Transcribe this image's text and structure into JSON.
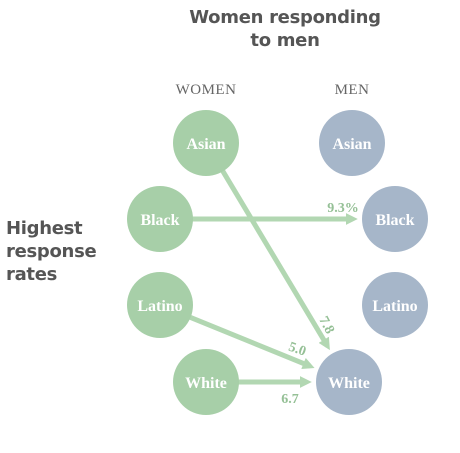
{
  "title_lines": [
    "Women responding",
    "to men"
  ],
  "side_label_lines": [
    "Highest",
    "response",
    "rates"
  ],
  "columns": {
    "women": "WOMEN",
    "men": "MEN"
  },
  "groups": [
    "Asian",
    "Black",
    "Latino",
    "White"
  ],
  "colors": {
    "women_node": "#a7cfa8",
    "men_node": "#a6b6c9",
    "arrow": "#b2d7b2",
    "rate_text": "#95c096",
    "title_text": "#555555"
  },
  "flows": [
    {
      "from": "Black",
      "to": "Black",
      "rate": "9.3%"
    },
    {
      "from": "Asian",
      "to": "White",
      "rate": "7.8"
    },
    {
      "from": "Latino",
      "to": "White",
      "rate": "5.0"
    },
    {
      "from": "White",
      "to": "White",
      "rate": "6.7"
    }
  ]
}
